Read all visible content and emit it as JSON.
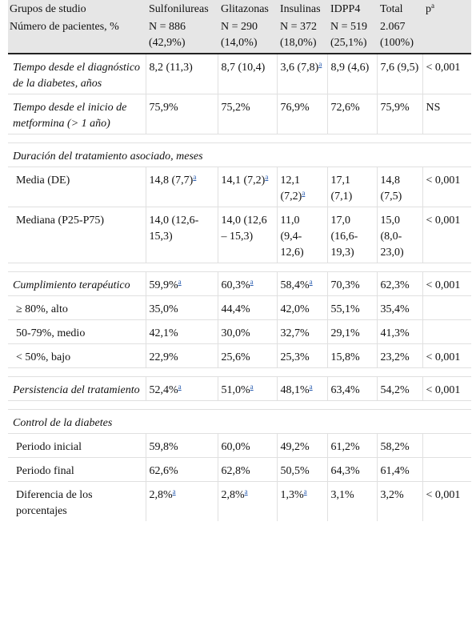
{
  "header": {
    "row1": [
      "Grupos de studio",
      "Sulfonilureas",
      "Glitazonas",
      "Insulinas",
      "IDPP4",
      "Total",
      "p"
    ],
    "p_sup": "a",
    "row2_label": "Número de pacientes, %",
    "groups": [
      {
        "n": "N = 886",
        "pct": "(42,9%)"
      },
      {
        "n": "N = 290",
        "pct": "(14,0%)"
      },
      {
        "n": "N = 372",
        "pct": "(18,0%)"
      },
      {
        "n": "N = 519",
        "pct": "(25,1%)"
      },
      {
        "n": "2.067",
        "pct": "(100%)"
      }
    ]
  },
  "rows": {
    "tiempo_diag": {
      "label": "Tiempo desde el diagnóstico de la diabetes, años",
      "c1": "8,2 (11,3)",
      "c2": "8,7 (10,4)",
      "c3": "3,6 (7,8)",
      "c3_sup": "a",
      "c4": "8,9 (4,6)",
      "c5": "7,6 (9,5)",
      "p": "< 0,001"
    },
    "tiempo_met": {
      "label": "Tiempo desde el inicio de metformina (> 1 año)",
      "c1": "75,9%",
      "c2": "75,2%",
      "c3": "76,9%",
      "c4": "72,6%",
      "c5": "75,9%",
      "p": "NS"
    },
    "duracion_section": "Duración del tratamiento asociado, meses",
    "media": {
      "label": "Media (DE)",
      "c1": "14,8 (7,7)",
      "c1_sup": "a",
      "c2": "14,1 (7,2)",
      "c2_sup": "a",
      "c3": "12,1 (7,2)",
      "c3_sup": "a",
      "c4": "17,1 (7,1)",
      "c5": "14,8 (7,5)",
      "p": "< 0,001"
    },
    "mediana": {
      "label": "Mediana (P25-P75)",
      "c1": "14,0 (12,6-15,3)",
      "c2": "14,0 (12,6 – 15,3)",
      "c3": "11,0 (9,4-12,6)",
      "c4": "17,0 (16,6-19,3)",
      "c5": "15,0 (8,0-23,0)",
      "p": "< 0,001"
    },
    "cumplimiento": {
      "label": "Cumplimiento terapéutico",
      "c1": "59,9%",
      "c1_sup": "a",
      "c2": "60,3%",
      "c2_sup": "a",
      "c3": "58,4%",
      "c3_sup": "a",
      "c4": "70,3%",
      "c5": "62,3%",
      "p": "< 0,001"
    },
    "alto": {
      "label": "≥ 80%, alto",
      "c1": "35,0%",
      "c2": "44,4%",
      "c3": "42,0%",
      "c4": "55,1%",
      "c5": "35,4%",
      "p": ""
    },
    "medio": {
      "label": "50-79%, medio",
      "c1": "42,1%",
      "c2": "30,0%",
      "c3": "32,7%",
      "c4": "29,1%",
      "c5": "41,3%",
      "p": ""
    },
    "bajo": {
      "label": "< 50%, bajo",
      "c1": "22,9%",
      "c2": "25,6%",
      "c3": "25,3%",
      "c4": "15,8%",
      "c5": "23,2%",
      "p": "< 0,001"
    },
    "persistencia": {
      "label": "Persistencia del tratamiento",
      "c1": "52,4%",
      "c1_sup": "a",
      "c2": "51,0%",
      "c2_sup": "a",
      "c3": "48,1%",
      "c3_sup": "a",
      "c4": "63,4%",
      "c5": "54,2%",
      "p": "< 0,001"
    },
    "control_section": "Control de la diabetes",
    "inicial": {
      "label": "Periodo inicial",
      "c1": "59,8%",
      "c2": "60,0%",
      "c3": "49,2%",
      "c4": "61,2%",
      "c5": "58,2%",
      "p": ""
    },
    "final": {
      "label": "Periodo final",
      "c1": "62,6%",
      "c2": "62,8%",
      "c3": "50,5%",
      "c4": "64,3%",
      "c5": "61,4%",
      "p": ""
    },
    "diferencia": {
      "label": "Diferencia de los porcentajes",
      "c1": "2,8%",
      "c1_sup": "a",
      "c2": "2,8%",
      "c2_sup": "a",
      "c3": "1,3%",
      "c3_sup": "a",
      "c4": "3,1%",
      "c5": "3,2%",
      "p": "< 0,001"
    }
  },
  "colors": {
    "header_bg": "#e6e6e6",
    "link": "#2a5db0",
    "rule": "#222222"
  }
}
